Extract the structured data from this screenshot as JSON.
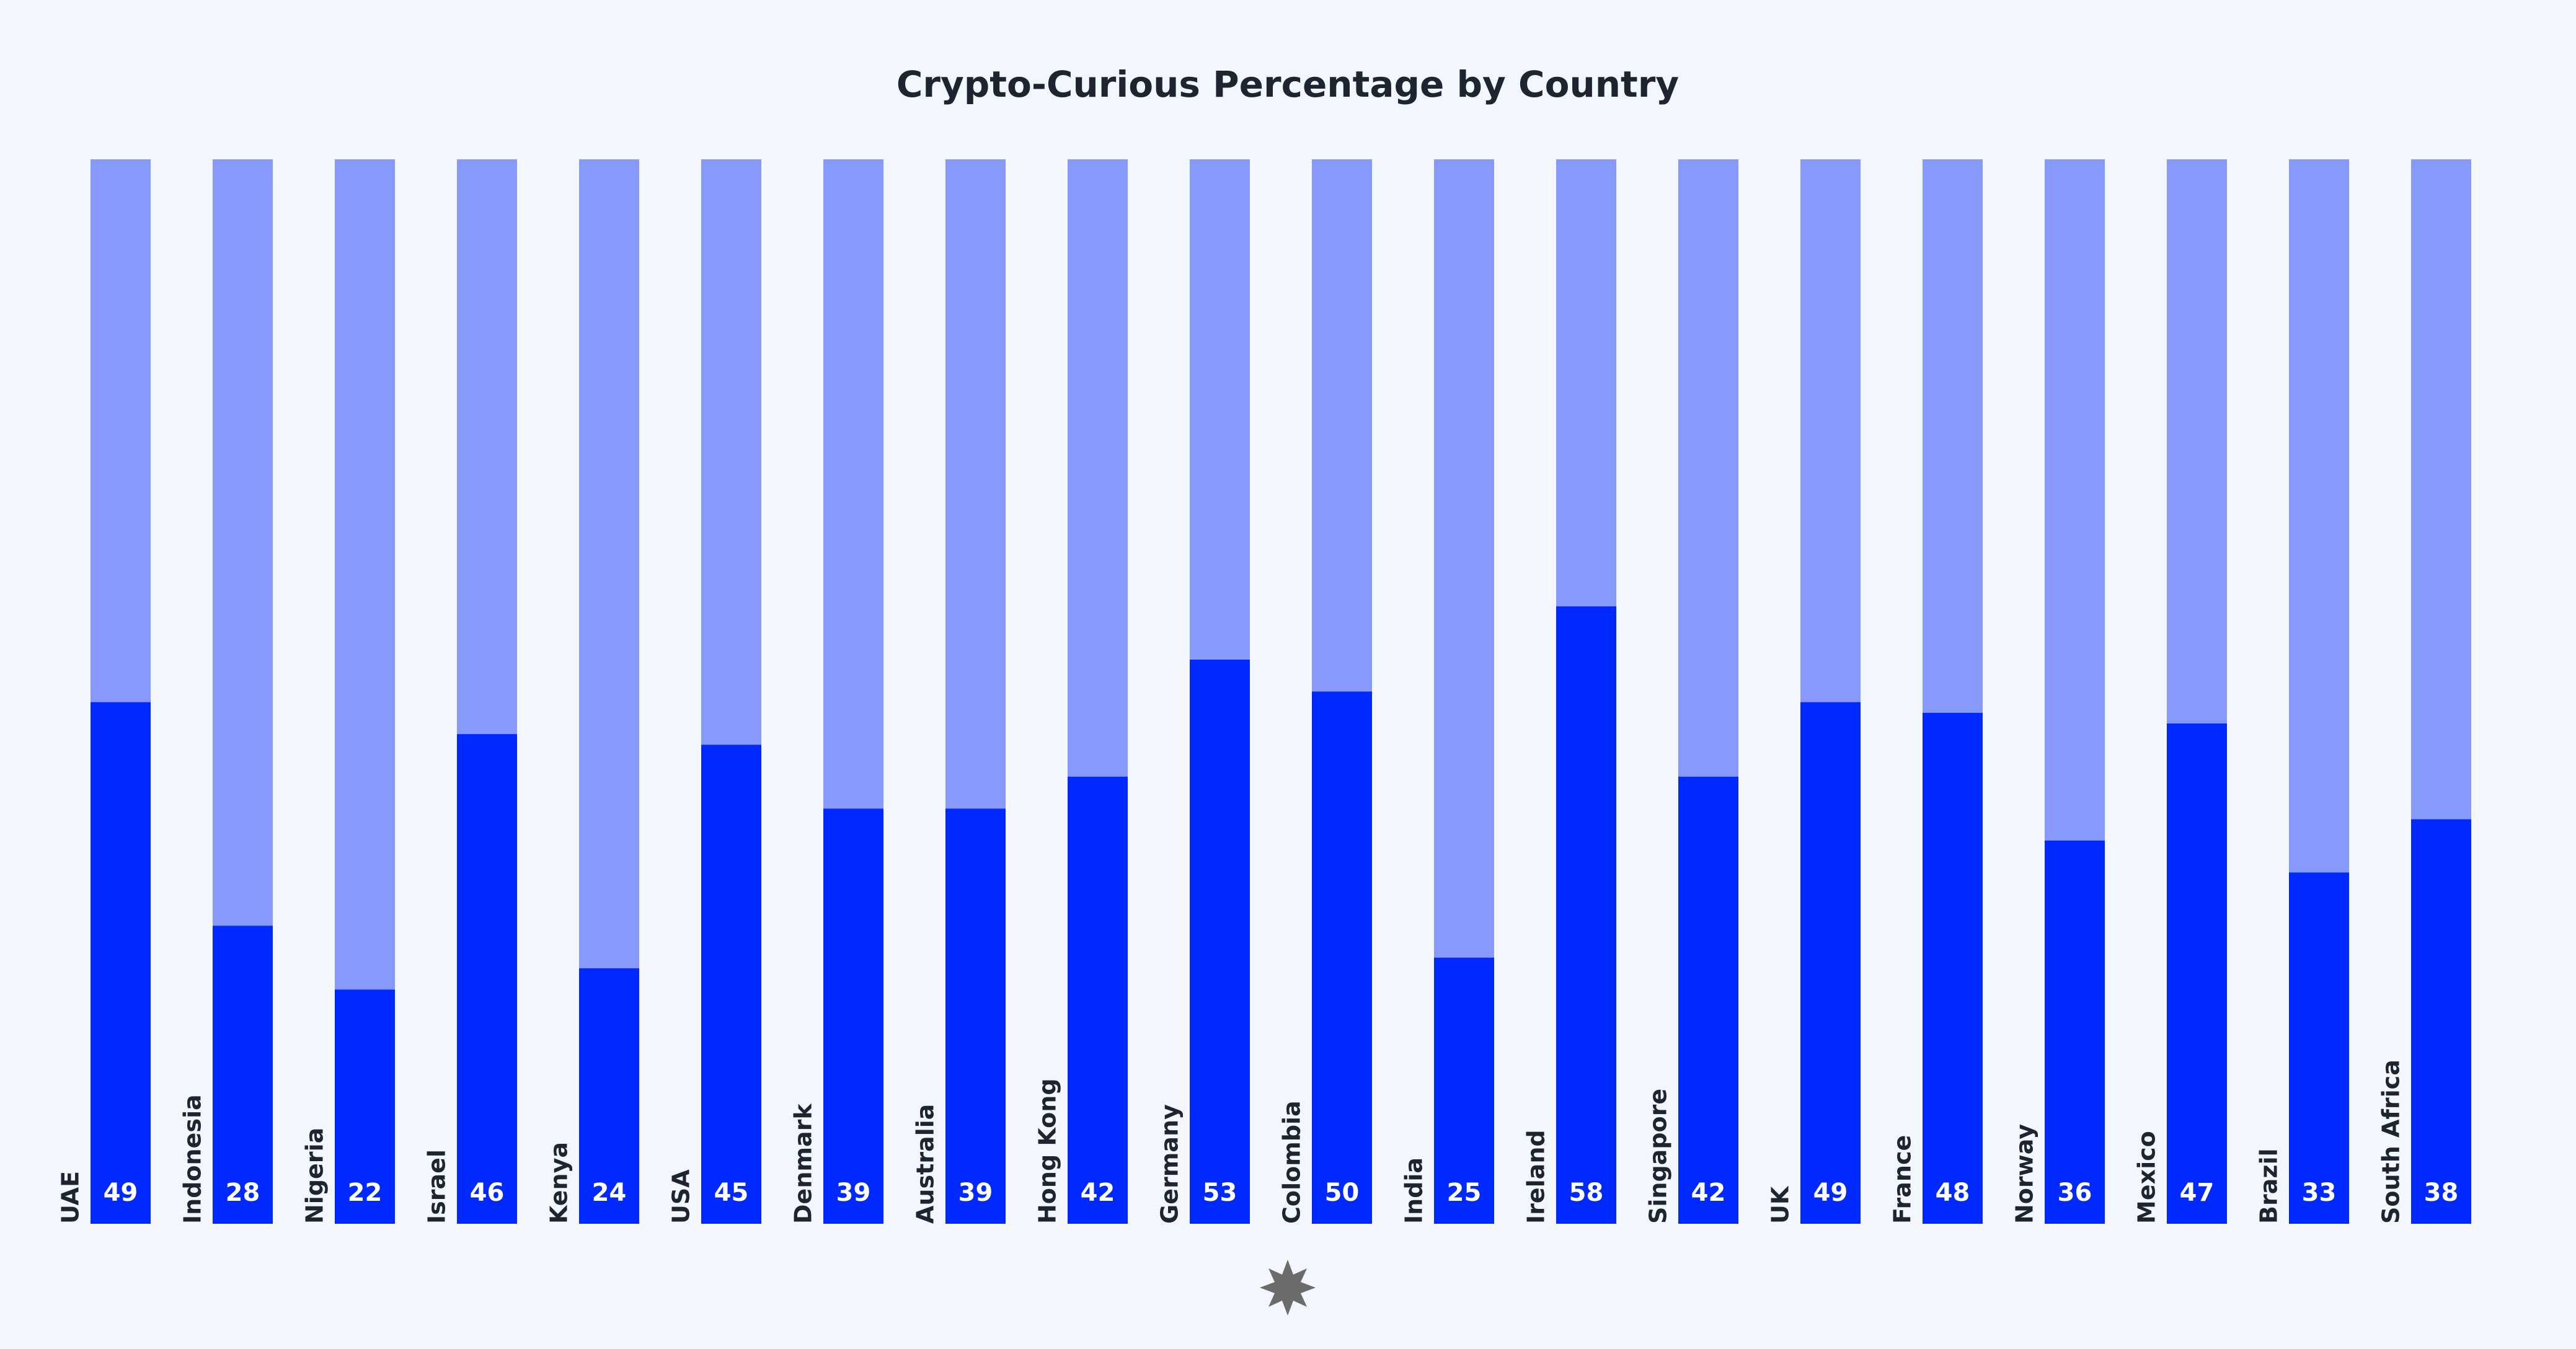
{
  "chart_data": {
    "type": "bar",
    "title": "Crypto-Curious Percentage by Country",
    "categories": [
      "UAE",
      "Indonesia",
      "Nigeria",
      "Israel",
      "Kenya",
      "USA",
      "Denmark",
      "Australia",
      "Hong Kong",
      "Germany",
      "Colombia",
      "India",
      "Ireland",
      "Singapore",
      "UK",
      "France",
      "Norway",
      "Mexico",
      "Brazil",
      "South Africa"
    ],
    "values": [
      49,
      28,
      22,
      46,
      24,
      45,
      39,
      39,
      42,
      53,
      50,
      25,
      58,
      42,
      49,
      48,
      36,
      47,
      33,
      38
    ],
    "color": "#0029ff",
    "track_color": "#8799fb",
    "ylim": [
      0,
      100
    ]
  }
}
